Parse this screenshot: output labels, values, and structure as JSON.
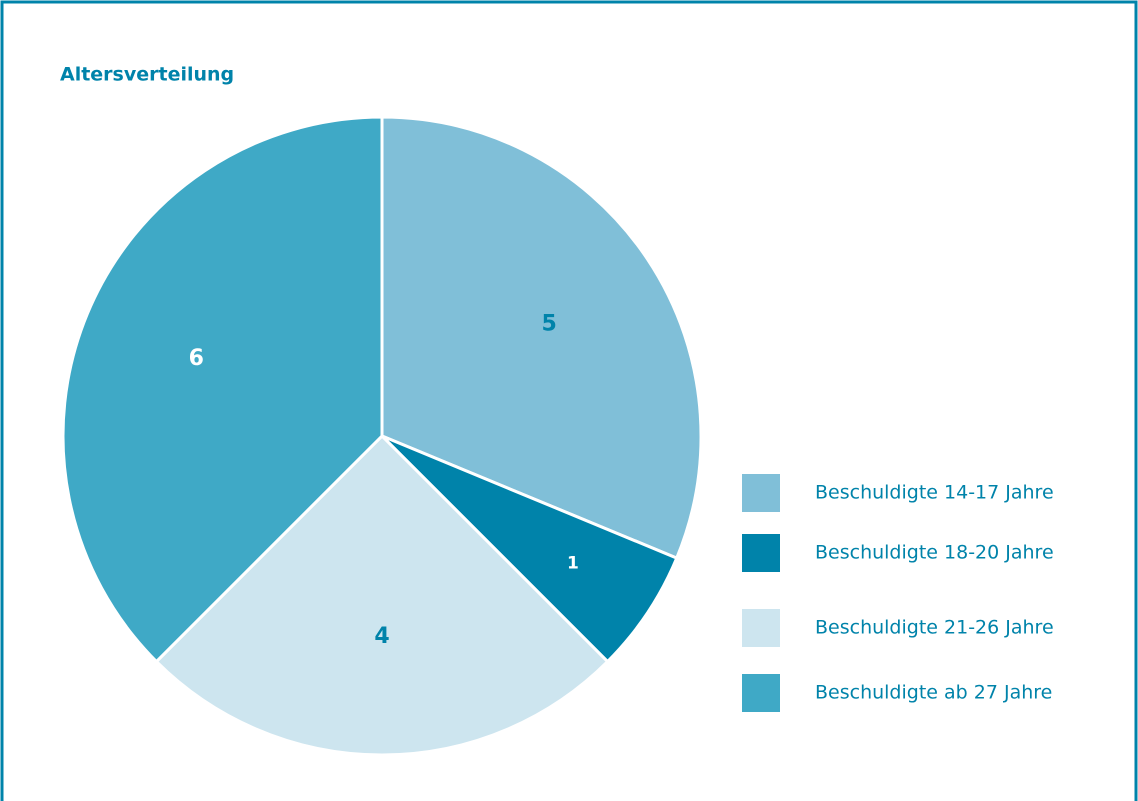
{
  "chart_data": {
    "type": "pie",
    "title": "Altersverteilung",
    "categories": [
      "Beschuldigte 14-17 Jahre",
      "Beschuldigte 18-20 Jahre",
      "Beschuldigte 21-26 Jahre",
      "Beschuldigte ab 27 Jahre"
    ],
    "values": [
      5,
      1,
      4,
      6
    ],
    "colors": [
      "#80bfd8",
      "#0083aa",
      "#cde5ef",
      "#3fa9c6"
    ],
    "legend": "right"
  }
}
